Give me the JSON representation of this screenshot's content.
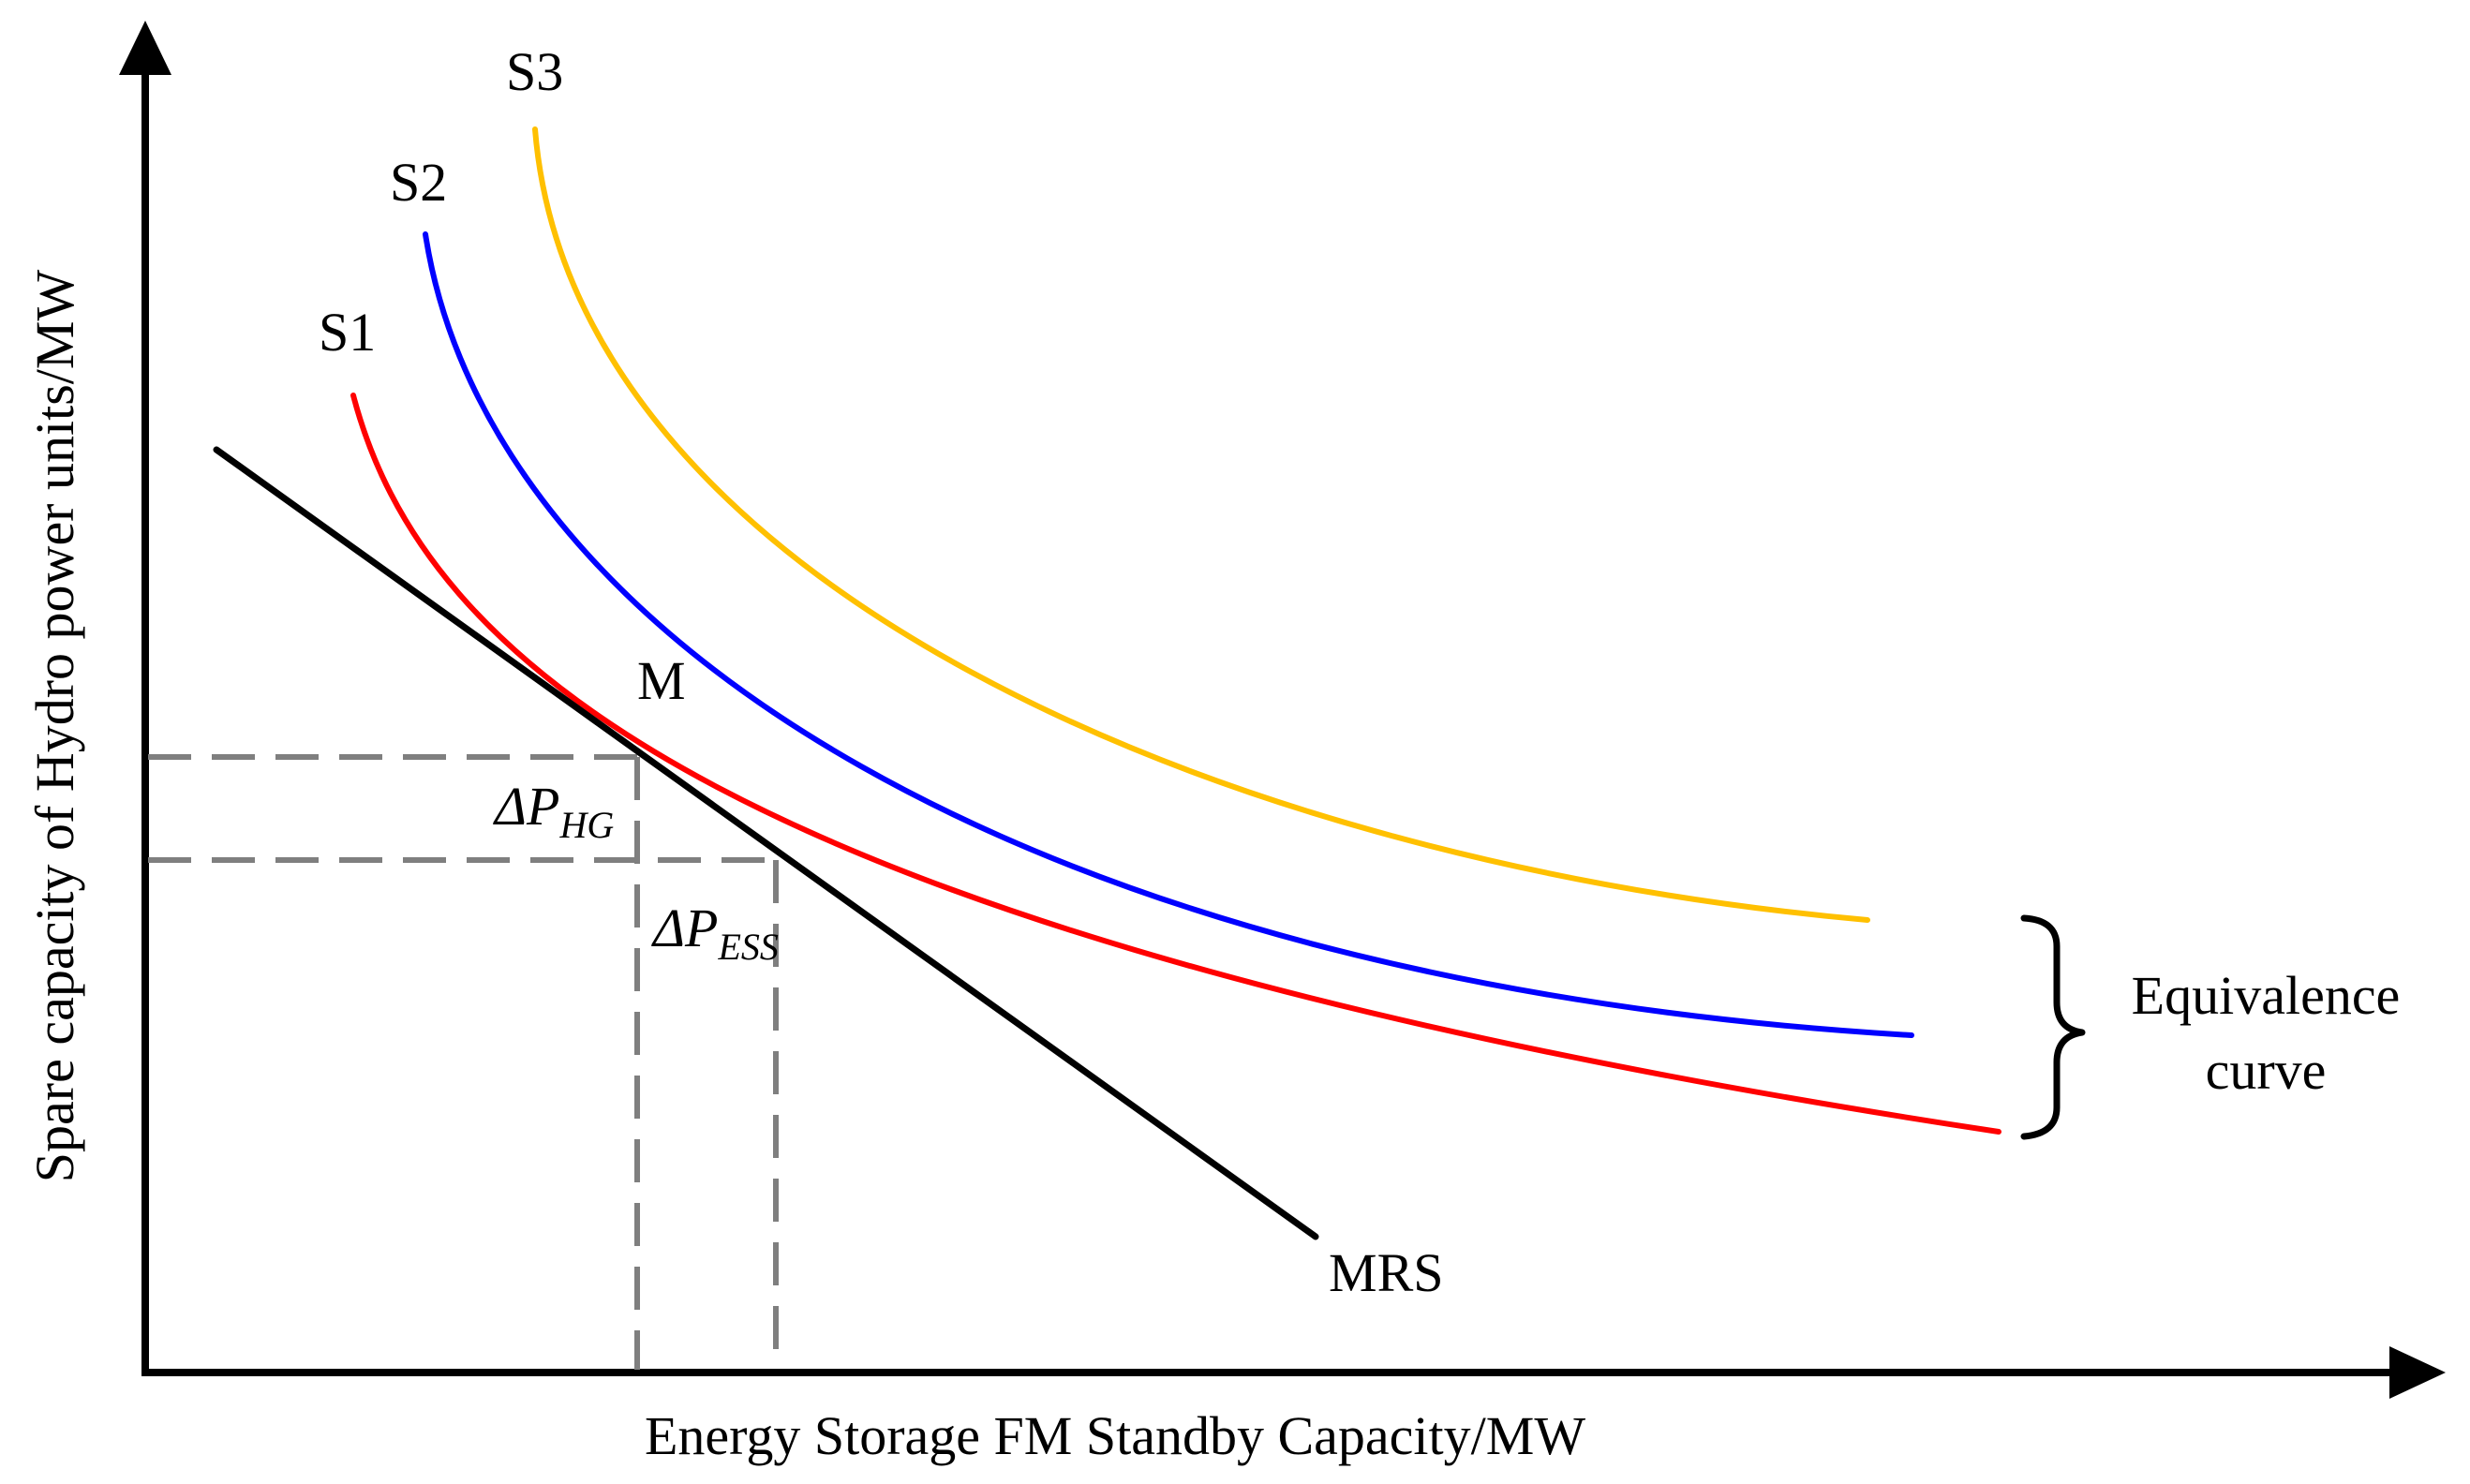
{
  "figure": {
    "x_axis_label": "Energy Storage FM Standby Capacity/MW",
    "y_axis_label": "Spare capacity of Hydro power units/MW",
    "curves": [
      {
        "label": "S1",
        "color": "#ff0000"
      },
      {
        "label": "S2",
        "color": "#0000ff"
      },
      {
        "label": "S3",
        "color": "#ffc000"
      }
    ],
    "mrs_label": "MRS",
    "mrs_color": "#000000",
    "point_label": "M",
    "delta_hg": {
      "prefix": "ΔP",
      "subscript": "HG"
    },
    "delta_ess": {
      "prefix": "ΔP",
      "subscript": "ESS"
    },
    "bracket_label_line1": "Equivalence",
    "bracket_label_line2": "curve",
    "guide_color": "#7f7f7f"
  }
}
